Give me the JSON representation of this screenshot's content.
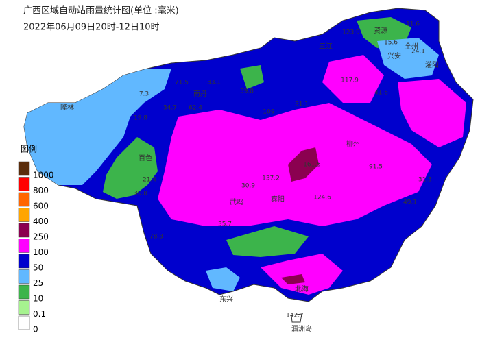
{
  "header": {
    "title": "广西区域自动站雨量统计图(单位 :毫米)",
    "subtitle": "2022年06月09日20时-12日10时"
  },
  "legend": {
    "title": "图例",
    "items": [
      {
        "label": "1000",
        "color": "#5a2d0c"
      },
      {
        "label": "800",
        "color": "#ff0000"
      },
      {
        "label": "600",
        "color": "#ff6600"
      },
      {
        "label": "400",
        "color": "#ffa500"
      },
      {
        "label": "250",
        "color": "#8b0050"
      },
      {
        "label": "100",
        "color": "#ff00ff"
      },
      {
        "label": "50",
        "color": "#0000cd"
      },
      {
        "label": "25",
        "color": "#61b8ff"
      },
      {
        "label": "10",
        "color": "#3cb44b"
      },
      {
        "label": "0.1",
        "color": "#a6f28f"
      },
      {
        "label": "0",
        "color": "#ffffff"
      }
    ]
  },
  "places": [
    "资源",
    "全州",
    "兴安",
    "灌阳",
    "三江",
    "南丹",
    "隆林",
    "百色",
    "武鸣",
    "宾阳",
    "柳州",
    "东兴",
    "北海",
    "涠洲岛"
  ],
  "rainfall_labels": [
    "123.9",
    "11.6",
    "15.6",
    "24.1",
    "71.5",
    "33.1",
    "39.8",
    "7.3",
    "19.8",
    "34.7",
    "62.4",
    "109",
    "31.1",
    "117.9",
    "41.6",
    "161.5",
    "137.2",
    "30.9",
    "124.6",
    "91.5",
    "49.1",
    "31.3",
    "21.4",
    "30.8",
    "78.3",
    "35.7",
    "142.7"
  ]
}
